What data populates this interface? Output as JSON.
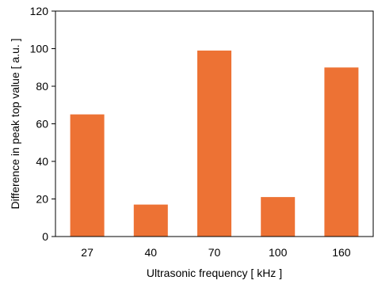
{
  "chart_data": {
    "type": "bar",
    "categories": [
      "27",
      "40",
      "70",
      "100",
      "160"
    ],
    "values": [
      65,
      17,
      99,
      21,
      90
    ],
    "title": "",
    "xlabel": "Ultrasonic frequency [ kHz ]",
    "ylabel": "Difference in peak top value [ a.u. ]",
    "ylim": [
      0,
      120
    ],
    "yticks": [
      0,
      20,
      40,
      60,
      80,
      100,
      120
    ],
    "grid": false,
    "legend": "none",
    "bar_color": "#ED7234",
    "axis_color": "#000000"
  }
}
